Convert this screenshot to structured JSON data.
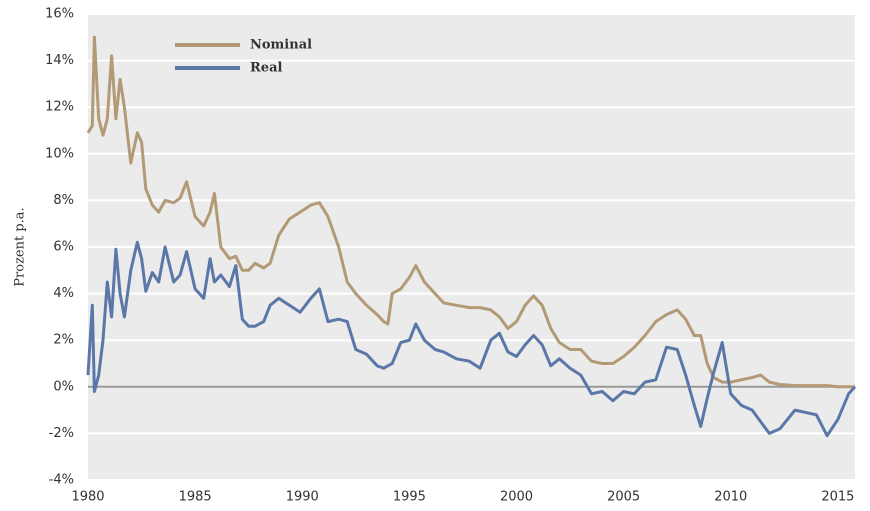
{
  "chart_data": {
    "type": "line",
    "ylabel": "Prozent p.a.",
    "x": [
      1980.0,
      1980.2,
      1980.3,
      1980.5,
      1980.7,
      1980.9,
      1981.1,
      1981.3,
      1981.5,
      1981.7,
      1982.0,
      1982.3,
      1982.5,
      1982.7,
      1983.0,
      1983.3,
      1983.6,
      1984.0,
      1984.3,
      1984.6,
      1985.0,
      1985.4,
      1985.7,
      1985.9,
      1986.2,
      1986.6,
      1986.9,
      1987.2,
      1987.5,
      1987.8,
      1988.2,
      1988.5,
      1988.9,
      1989.4,
      1989.9,
      1990.4,
      1990.8,
      1991.2,
      1991.7,
      1992.1,
      1992.5,
      1993.0,
      1993.5,
      1993.8,
      1994.0,
      1994.2,
      1994.6,
      1995.0,
      1995.3,
      1995.7,
      1996.2,
      1996.6,
      1997.2,
      1997.8,
      1998.3,
      1998.8,
      1999.2,
      1999.6,
      2000.0,
      2000.4,
      2000.8,
      2001.2,
      2001.6,
      2002.0,
      2002.5,
      2003.0,
      2003.5,
      2004.0,
      2004.5,
      2005.0,
      2005.5,
      2006.0,
      2006.5,
      2007.0,
      2007.5,
      2007.9,
      2008.3,
      2008.6,
      2008.9,
      2009.2,
      2009.6,
      2010.0,
      2010.5,
      2011.0,
      2011.4,
      2011.8,
      2012.3,
      2013.0,
      2014.0,
      2014.5,
      2015.0,
      2015.5,
      2015.8
    ],
    "series": [
      {
        "name": "Nominal",
        "color": "#b39a77",
        "values": [
          10.9,
          11.2,
          15.0,
          11.5,
          10.8,
          11.5,
          14.2,
          11.5,
          13.2,
          12.0,
          9.6,
          10.9,
          10.5,
          8.5,
          7.8,
          7.5,
          8.0,
          7.9,
          8.1,
          8.8,
          7.3,
          6.9,
          7.5,
          8.3,
          6.0,
          5.5,
          5.6,
          5.0,
          5.0,
          5.3,
          5.1,
          5.3,
          6.5,
          7.2,
          7.5,
          7.8,
          7.9,
          7.3,
          6.0,
          4.5,
          4.0,
          3.5,
          3.1,
          2.8,
          2.7,
          4.0,
          4.2,
          4.7,
          5.2,
          4.5,
          4.0,
          3.6,
          3.5,
          3.4,
          3.4,
          3.3,
          3.0,
          2.5,
          2.8,
          3.5,
          3.9,
          3.5,
          2.5,
          1.9,
          1.6,
          1.6,
          1.1,
          1.0,
          1.0,
          1.3,
          1.7,
          2.2,
          2.8,
          3.1,
          3.3,
          2.9,
          2.2,
          2.2,
          1.0,
          0.4,
          0.2,
          0.2,
          0.3,
          0.4,
          0.5,
          0.2,
          0.1,
          0.05,
          0.05,
          0.05,
          0.0,
          0.0,
          0.0
        ]
      },
      {
        "name": "Real",
        "color": "#5b77a8",
        "values": [
          0.5,
          3.5,
          -0.2,
          0.5,
          2.0,
          4.5,
          3.0,
          5.9,
          4.0,
          3.0,
          5.0,
          6.2,
          5.5,
          4.1,
          4.9,
          4.5,
          6.0,
          4.5,
          4.8,
          5.8,
          4.2,
          3.8,
          5.5,
          4.5,
          4.8,
          4.3,
          5.2,
          2.9,
          2.6,
          2.6,
          2.8,
          3.5,
          3.8,
          3.5,
          3.2,
          3.8,
          4.2,
          2.8,
          2.9,
          2.8,
          1.6,
          1.4,
          0.9,
          0.8,
          0.9,
          1.0,
          1.9,
          2.0,
          2.7,
          2.0,
          1.6,
          1.5,
          1.2,
          1.1,
          0.8,
          2.0,
          2.3,
          1.5,
          1.3,
          1.8,
          2.2,
          1.8,
          0.9,
          1.2,
          0.8,
          0.5,
          -0.3,
          -0.2,
          -0.6,
          -0.2,
          -0.3,
          0.2,
          0.3,
          1.7,
          1.6,
          0.5,
          -0.8,
          -1.7,
          -0.5,
          0.6,
          1.9,
          -0.3,
          -0.8,
          -1.0,
          -1.5,
          -2.0,
          -1.8,
          -1.0,
          -1.2,
          -2.1,
          -1.4,
          -0.3,
          0.0
        ]
      }
    ],
    "xlim": [
      1980,
      2015.8
    ],
    "xticks": [
      1980,
      1985,
      1990,
      1995,
      2000,
      2005,
      2010,
      2015
    ],
    "ylim": [
      -4,
      16
    ],
    "yticks": [
      {
        "value": -4,
        "label": "-4%"
      },
      {
        "value": -2,
        "label": "-2%"
      },
      {
        "value": 0,
        "label": "0%"
      },
      {
        "value": 2,
        "label": "2%"
      },
      {
        "value": 4,
        "label": "4%"
      },
      {
        "value": 6,
        "label": "6%"
      },
      {
        "value": 8,
        "label": "8%"
      },
      {
        "value": 10,
        "label": "10%"
      },
      {
        "value": 12,
        "label": "12%"
      },
      {
        "value": 14,
        "label": "14%"
      },
      {
        "value": 16,
        "label": "16%"
      }
    ],
    "grid": true,
    "legend": "upper left"
  }
}
